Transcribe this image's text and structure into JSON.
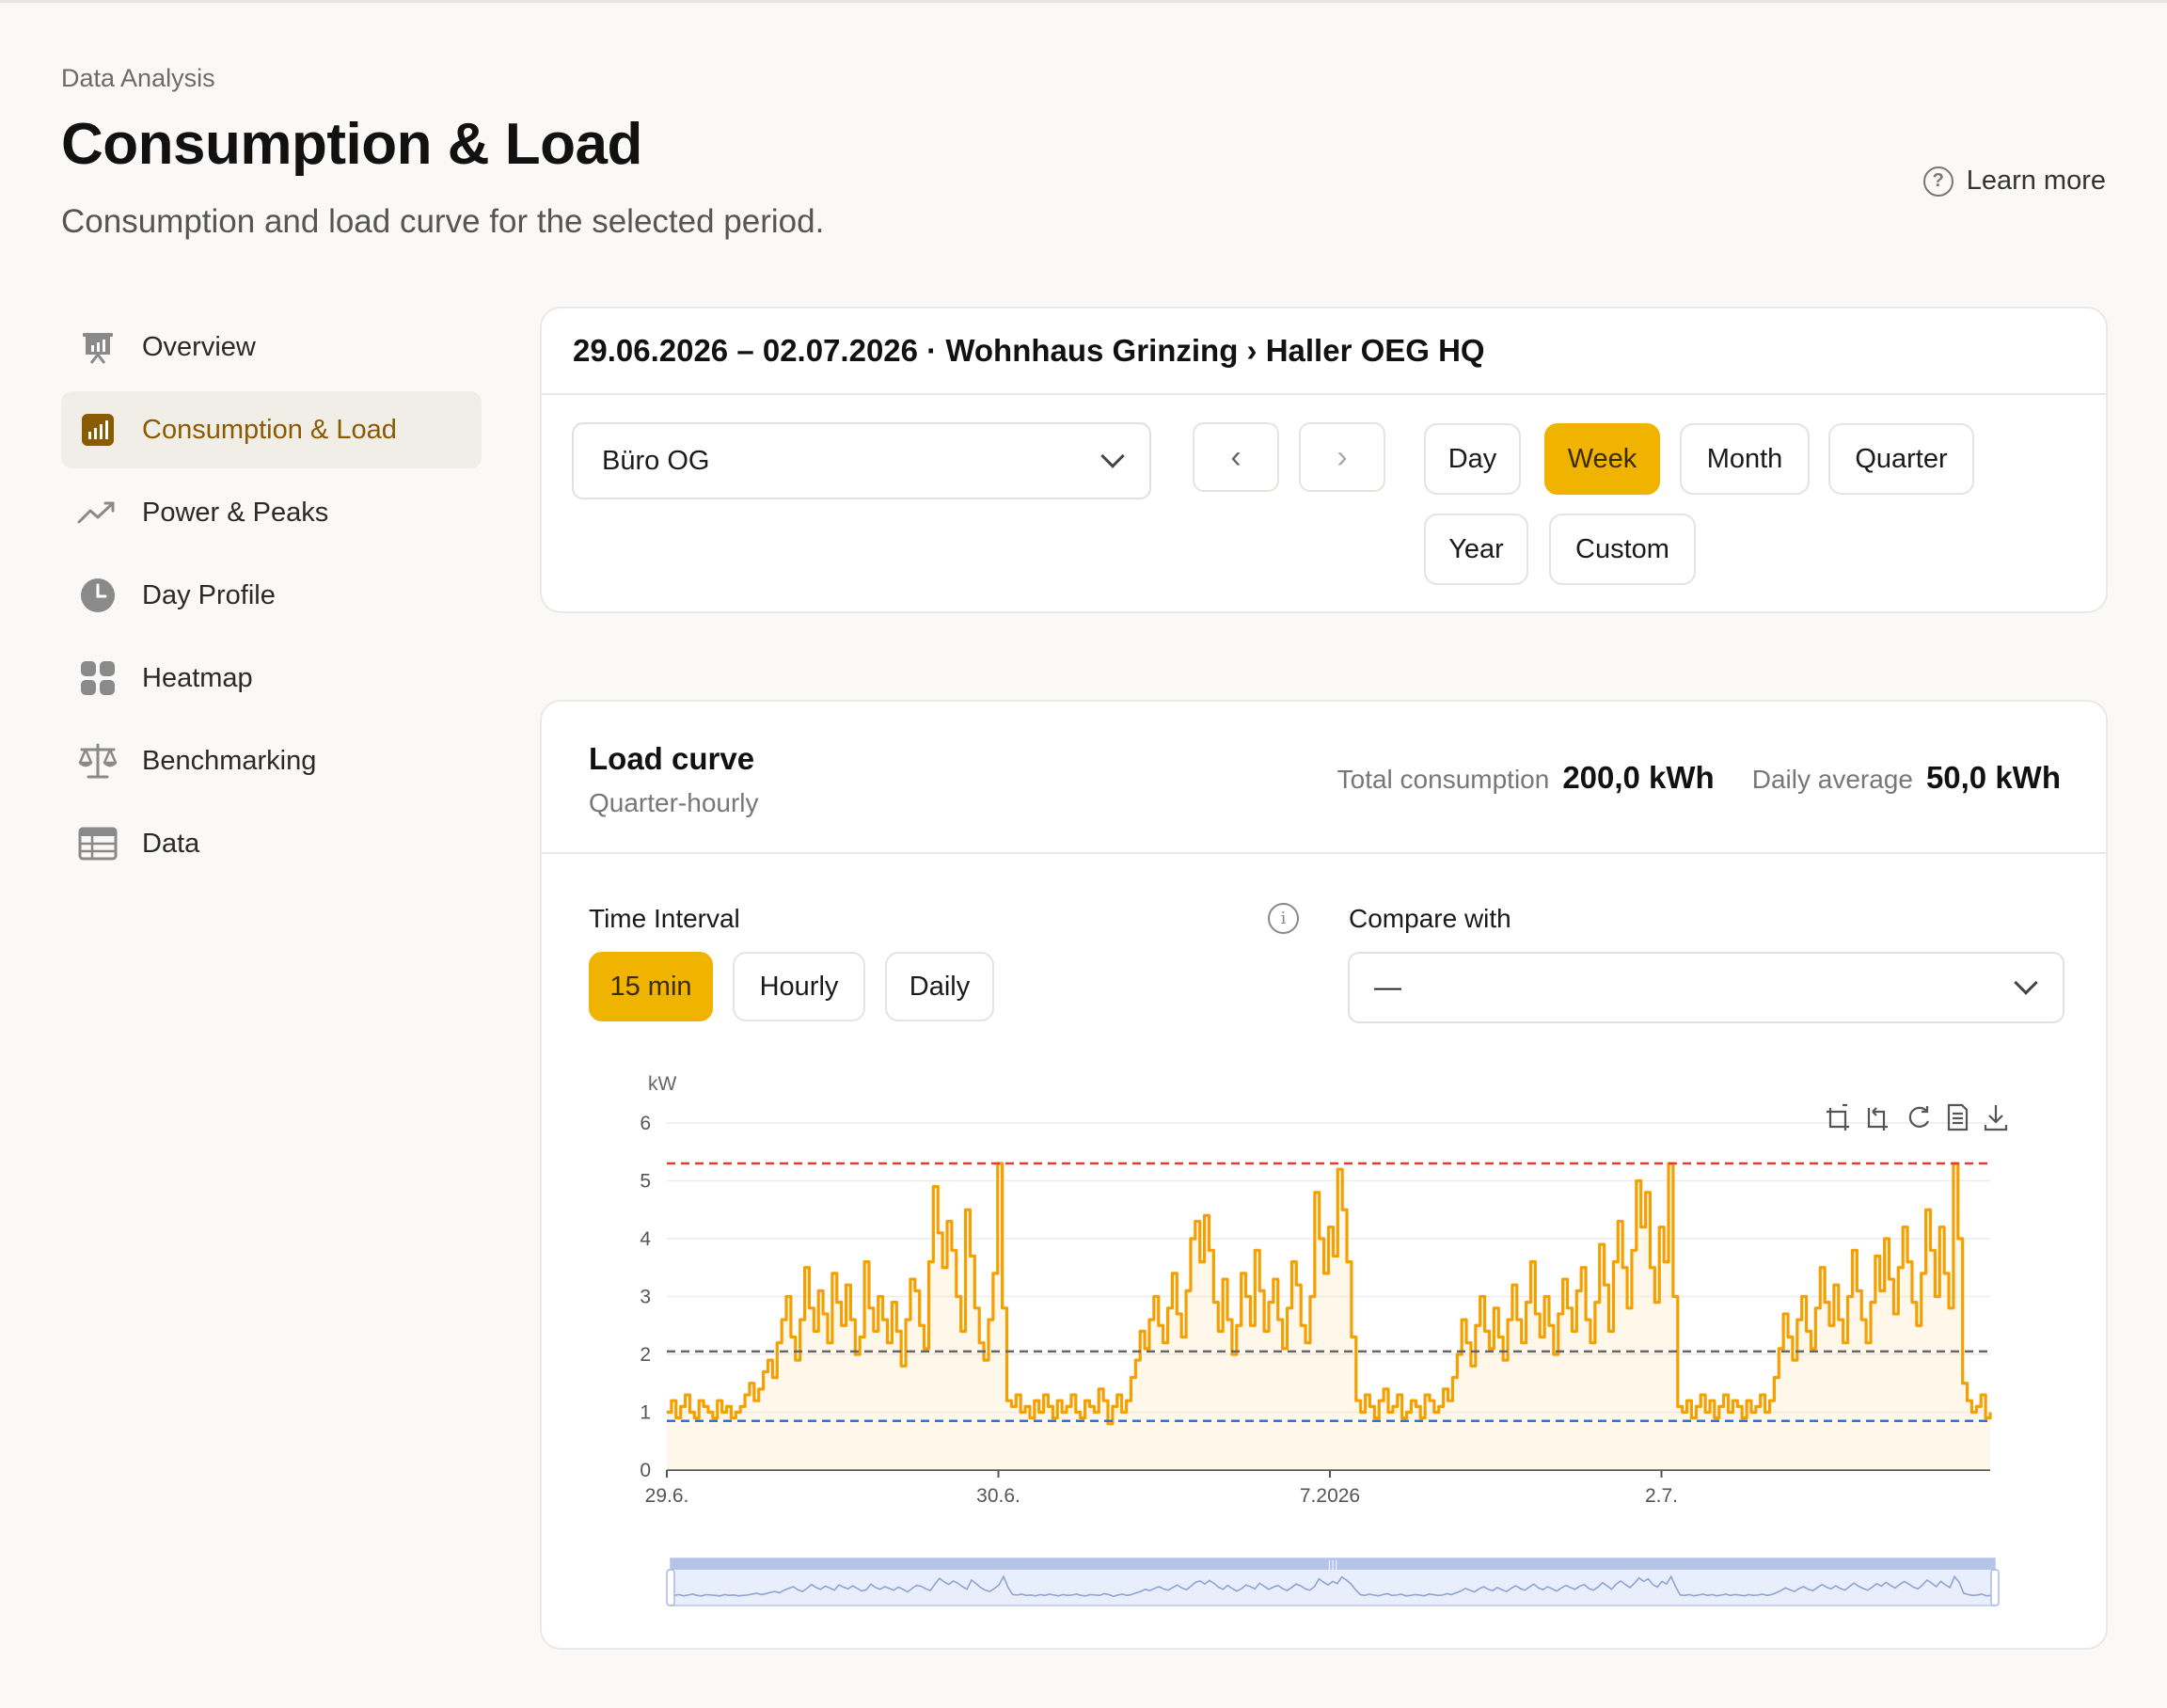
{
  "header": {
    "eyebrow": "Data Analysis",
    "title": "Consumption & Load",
    "subtitle": "Consumption and load curve for the selected period.",
    "learn_more": "Learn more"
  },
  "sidebar": {
    "items": [
      {
        "label": "Overview",
        "icon": "presentation-chart-icon",
        "active": false
      },
      {
        "label": "Consumption & Load",
        "icon": "bar-chart-icon",
        "active": true
      },
      {
        "label": "Power & Peaks",
        "icon": "trending-up-icon",
        "active": false
      },
      {
        "label": "Day Profile",
        "icon": "clock-icon",
        "active": false
      },
      {
        "label": "Heatmap",
        "icon": "grid-icon",
        "active": false
      },
      {
        "label": "Benchmarking",
        "icon": "scale-icon",
        "active": false
      },
      {
        "label": "Data",
        "icon": "table-icon",
        "active": false
      }
    ]
  },
  "filter": {
    "heading": "29.06.2026 – 02.07.2026 · Wohnhaus Grinzing › Haller OEG HQ",
    "meter": "Büro OG",
    "prev": "‹",
    "next": "›",
    "periods": [
      "Day",
      "Week",
      "Month",
      "Quarter",
      "Year",
      "Custom"
    ],
    "active_period": "Week"
  },
  "load_curve": {
    "title": "Load curve",
    "subtitle": "Quarter-hourly",
    "total_label": "Total consumption",
    "total_value": "200,0 kWh",
    "avg_label": "Daily average",
    "avg_value": "50,0 kWh",
    "interval_label": "Time Interval",
    "intervals": [
      "15 min",
      "Hourly",
      "Daily"
    ],
    "active_interval": "15 min",
    "compare_label": "Compare with",
    "compare_value": "—"
  },
  "colors": {
    "accent": "#f0b400",
    "series": "#f5a000",
    "max_line": "#e53935",
    "avg_line": "#666666",
    "min_line": "#2f6fe0"
  },
  "chart_data": {
    "type": "line",
    "ylabel": "kW",
    "ylim": [
      0,
      6
    ],
    "yticks": [
      "0",
      "1",
      "2",
      "3",
      "4",
      "5",
      "6"
    ],
    "xticks": [
      "29.6.",
      "30.6.",
      "7.2026",
      "2.7."
    ],
    "reference_lines": {
      "max": 5.3,
      "avg": 2.05,
      "min": 0.85
    },
    "series": [
      {
        "values": [
          1.0,
          1.2,
          0.9,
          1.1,
          1.3,
          1.0,
          0.9,
          1.2,
          1.1,
          1.0,
          0.9,
          1.2,
          1.0,
          1.1,
          0.9,
          1.0,
          1.1,
          1.3,
          1.5,
          1.2,
          1.4,
          1.7,
          1.9,
          1.6,
          2.2,
          2.6,
          3.0,
          2.3,
          1.9,
          2.6,
          3.5,
          2.8,
          2.4,
          3.1,
          2.7,
          2.2,
          3.4,
          2.9,
          2.5,
          3.2,
          2.6,
          2.0,
          2.3,
          3.6,
          2.8,
          2.4,
          3.0,
          2.6,
          2.2,
          2.9,
          2.4,
          1.8,
          2.6,
          3.3,
          3.1,
          2.5,
          2.1,
          3.6,
          4.9,
          4.1,
          3.5,
          4.3,
          3.8,
          3.0,
          2.4,
          4.5,
          3.7,
          2.8,
          2.2,
          1.9,
          2.6,
          3.4,
          5.3,
          2.8,
          1.2,
          1.1,
          1.3,
          1.0,
          1.1,
          0.9,
          1.2,
          1.0,
          1.3,
          1.1,
          0.9,
          1.2,
          1.0,
          1.1,
          1.3,
          1.0,
          0.9,
          1.2,
          1.1,
          1.0,
          1.4,
          1.2,
          0.8,
          1.1,
          1.3,
          1.0,
          1.2,
          1.6,
          1.9,
          2.4,
          2.1,
          2.6,
          3.0,
          2.5,
          2.2,
          2.8,
          3.4,
          2.7,
          2.3,
          3.1,
          4.0,
          4.3,
          3.6,
          4.4,
          3.8,
          2.9,
          2.4,
          3.3,
          2.6,
          2.0,
          2.5,
          3.4,
          3.0,
          2.5,
          3.8,
          3.1,
          2.4,
          2.9,
          3.3,
          2.6,
          2.1,
          2.8,
          3.6,
          3.2,
          2.5,
          2.2,
          3.0,
          4.8,
          4.0,
          3.4,
          4.2,
          3.7,
          5.2,
          4.5,
          3.6,
          2.3,
          1.2,
          1.0,
          1.3,
          1.1,
          0.9,
          1.2,
          1.4,
          1.0,
          1.1,
          1.3,
          0.9,
          1.0,
          1.2,
          1.1,
          0.9,
          1.3,
          1.2,
          1.0,
          1.1,
          1.4,
          1.2,
          1.6,
          2.0,
          2.6,
          2.2,
          1.8,
          2.5,
          3.0,
          2.4,
          2.1,
          2.8,
          2.3,
          1.9,
          2.6,
          3.2,
          2.6,
          2.2,
          2.9,
          3.6,
          2.7,
          2.3,
          3.0,
          2.5,
          2.0,
          2.7,
          3.3,
          2.8,
          2.4,
          3.1,
          3.5,
          2.6,
          2.2,
          2.9,
          3.9,
          3.2,
          2.4,
          3.6,
          4.3,
          3.5,
          2.8,
          3.8,
          5.0,
          4.2,
          4.8,
          3.5,
          2.9,
          4.2,
          3.6,
          5.3,
          3.0,
          1.1,
          1.0,
          1.2,
          0.9,
          1.1,
          1.3,
          1.0,
          1.2,
          0.9,
          1.1,
          1.3,
          1.0,
          1.2,
          1.1,
          0.9,
          1.2,
          1.0,
          1.1,
          1.3,
          1.0,
          1.2,
          1.6,
          2.1,
          2.7,
          2.3,
          1.9,
          2.6,
          3.0,
          2.4,
          2.1,
          2.8,
          3.5,
          2.9,
          2.5,
          3.2,
          2.6,
          2.2,
          3.0,
          3.8,
          3.1,
          2.6,
          2.2,
          2.9,
          3.7,
          3.1,
          4.0,
          3.3,
          2.7,
          3.5,
          4.2,
          3.6,
          2.9,
          2.5,
          3.4,
          4.5,
          3.8,
          3.0,
          4.2,
          3.4,
          2.8,
          5.3,
          4.0,
          1.5,
          1.2,
          1.0,
          1.1,
          1.3,
          0.9,
          1.0
        ]
      }
    ]
  }
}
